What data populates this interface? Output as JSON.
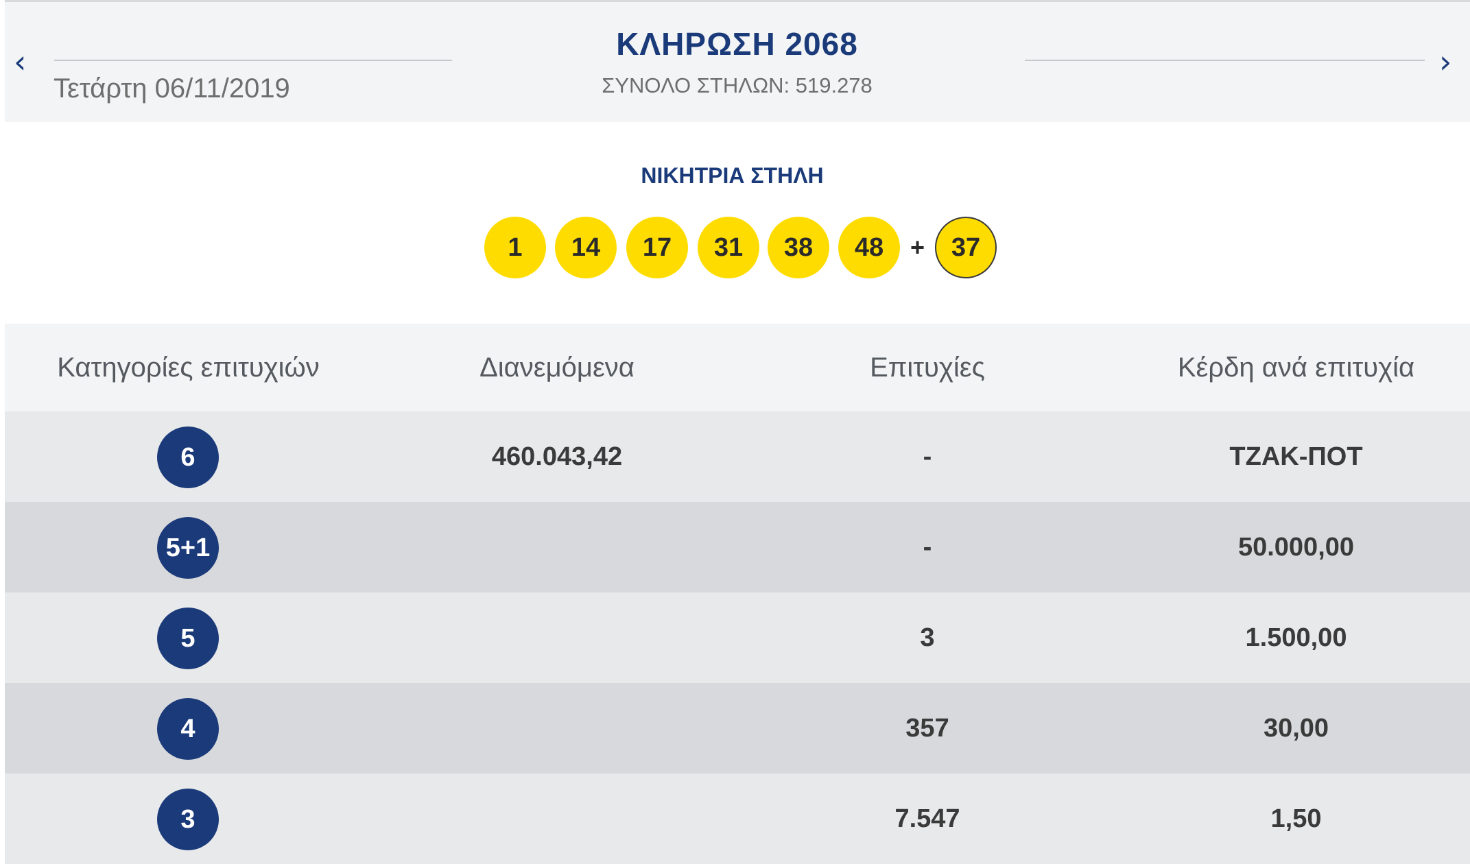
{
  "draw": {
    "title": "ΚΛΗΡΩΣΗ 2068",
    "date": "Τετάρτη 06/11/2019",
    "total_columns": "ΣΥΝΟΛΟ ΣΤΗΛΩΝ: 519.278",
    "prev_icon": "‹",
    "next_icon": "›"
  },
  "winning": {
    "title": "ΝΙΚΗΤΡΙΑ ΣΤΗΛΗ",
    "numbers": [
      "1",
      "14",
      "17",
      "31",
      "38",
      "48"
    ],
    "plus": "+",
    "bonus": "37"
  },
  "table": {
    "headers": [
      "Κατηγορίες επιτυχιών",
      "Διανεμόμενα",
      "Επιτυχίες",
      "Κέρδη ανά επιτυχία"
    ],
    "rows": [
      {
        "category": "6",
        "distributed": "460.043,42",
        "winners": "-",
        "prize": "ΤΖΑΚ-ΠΟΤ"
      },
      {
        "category": "5+1",
        "distributed": "",
        "winners": "-",
        "prize": "50.000,00"
      },
      {
        "category": "5",
        "distributed": "",
        "winners": "3",
        "prize": "1.500,00"
      },
      {
        "category": "4",
        "distributed": "",
        "winners": "357",
        "prize": "30,00"
      },
      {
        "category": "3",
        "distributed": "",
        "winners": "7.547",
        "prize": "1,50"
      }
    ]
  },
  "colors": {
    "brand_blue": "#1a3a7a",
    "ball_yellow": "#ffdc00",
    "header_bg": "#f3f4f5"
  }
}
